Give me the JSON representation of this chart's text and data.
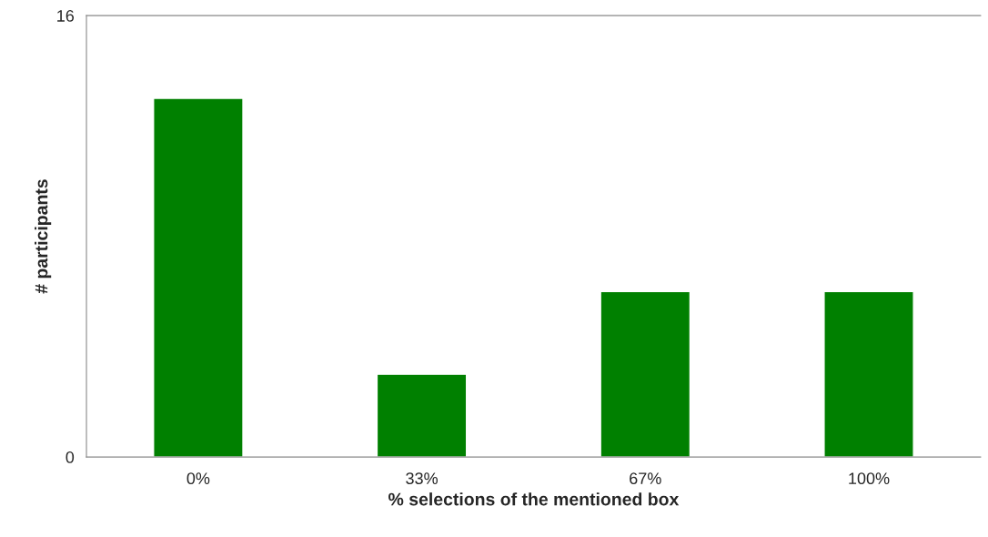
{
  "chart_data": {
    "type": "bar",
    "xlabel": "% selections of the mentioned box",
    "ylabel": "# participants",
    "categories": [
      "0%",
      "33%",
      "67%",
      "100%"
    ],
    "values": [
      13,
      3,
      6,
      6
    ],
    "color": "#008000",
    "ylim": [
      0,
      16
    ],
    "yticks": [
      0,
      16
    ],
    "grid": false
  }
}
